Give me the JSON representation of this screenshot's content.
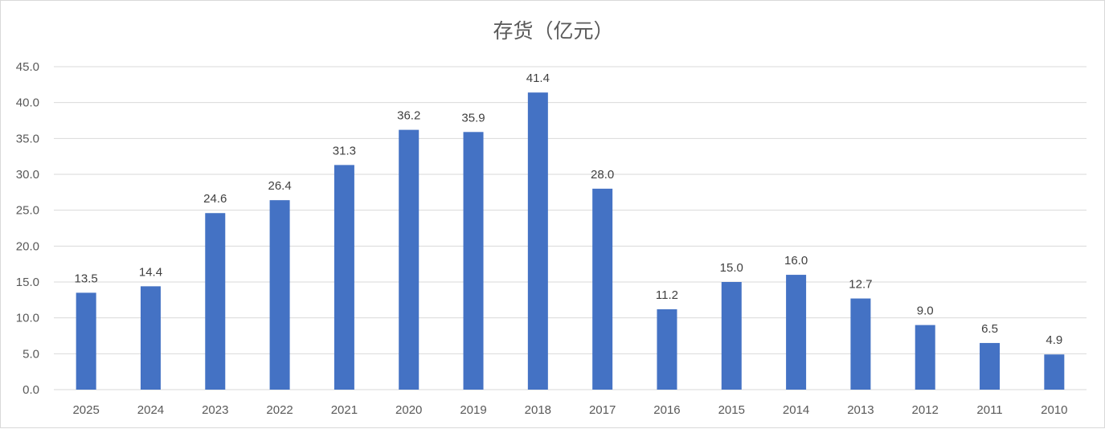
{
  "chart_data": {
    "type": "bar",
    "title": "存货（亿元）",
    "categories": [
      "2025",
      "2024",
      "2023",
      "2022",
      "2021",
      "2020",
      "2019",
      "2018",
      "2017",
      "2016",
      "2015",
      "2014",
      "2013",
      "2012",
      "2011",
      "2010"
    ],
    "values": [
      13.5,
      14.4,
      24.6,
      26.4,
      31.3,
      36.2,
      35.9,
      41.4,
      28.0,
      11.2,
      15.0,
      16.0,
      12.7,
      9.0,
      6.5,
      4.9
    ],
    "data_labels": [
      "13.5",
      "14.4",
      "24.6",
      "26.4",
      "31.3",
      "36.2",
      "35.9",
      "41.4",
      "28.0",
      "11.2",
      "15.0",
      "16.0",
      "12.7",
      "9.0",
      "6.5",
      "4.9"
    ],
    "ylim": [
      0,
      45
    ],
    "yticks": [
      "0.0",
      "5.0",
      "10.0",
      "15.0",
      "20.0",
      "25.0",
      "30.0",
      "35.0",
      "40.0",
      "45.0"
    ],
    "grid": true,
    "legend": "none",
    "bar_color": "#4472C4",
    "grid_color": "#d9d9d9"
  }
}
